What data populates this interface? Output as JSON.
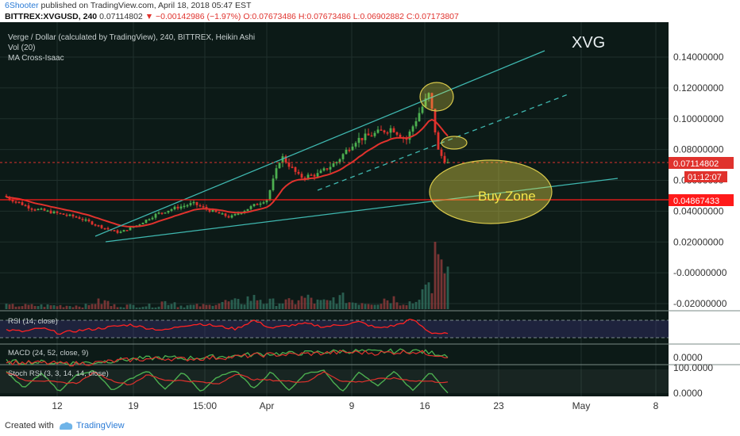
{
  "header": {
    "publisher": "6Shooter",
    "published_text": "published on TradingView.com, April 18, 2018 05:47 EST",
    "symbol": "BITTREX:XVGUSD",
    "interval": "240",
    "last_price": "0.07114802",
    "change": "▼ −0.00142986 (−1.97%)",
    "ohlc": "O:0.07673486 H:0.07673486 L:0.06902882 C:0.07173807"
  },
  "chart_data": {
    "type": "candlestick",
    "title": "Verge / Dollar (calculated by TradingView), 240, BITTREX, Heikin Ashi",
    "indicators": [
      "Vol (20)",
      "MA Cross-Isaac"
    ],
    "symbol_watermark": "XVG",
    "annotation": "Buy Zone",
    "price_axis_ticks": [
      "0.14000000",
      "0.12000000",
      "0.10000000",
      "0.08000000",
      "0.06000000",
      "0.04000000",
      "0.02000000",
      "-0.00000000",
      "-0.02000000"
    ],
    "ylim": [
      -0.026,
      0.152
    ],
    "x_ticks": [
      "12",
      "19",
      "15:00",
      "Apr",
      "9",
      "16",
      "23",
      "May",
      "8"
    ],
    "last_price_label": "0.07114802",
    "countdown_label": "01:12:07",
    "support_line_label": "0.04867433",
    "support_level": 0.04867433,
    "colors": {
      "up": "#4caf50",
      "down": "#e0322d",
      "ma": "#e0322d",
      "trend": "#3fb8b0",
      "zone": "#f5e64a",
      "support": "#ff1a1a"
    },
    "price_path": [
      {
        "t": 0,
        "p": 0.05
      },
      {
        "t": 12,
        "p": 0.042
      },
      {
        "t": 22,
        "p": 0.039
      },
      {
        "t": 32,
        "p": 0.036
      },
      {
        "t": 42,
        "p": 0.03
      },
      {
        "t": 50,
        "p": 0.026
      },
      {
        "t": 58,
        "p": 0.031
      },
      {
        "t": 66,
        "p": 0.038
      },
      {
        "t": 74,
        "p": 0.042
      },
      {
        "t": 82,
        "p": 0.045
      },
      {
        "t": 90,
        "p": 0.04
      },
      {
        "t": 98,
        "p": 0.036
      },
      {
        "t": 106,
        "p": 0.042
      },
      {
        "t": 114,
        "p": 0.048
      },
      {
        "t": 120,
        "p": 0.076
      },
      {
        "t": 128,
        "p": 0.062
      },
      {
        "t": 136,
        "p": 0.064
      },
      {
        "t": 144,
        "p": 0.072
      },
      {
        "t": 152,
        "p": 0.086
      },
      {
        "t": 160,
        "p": 0.09
      },
      {
        "t": 168,
        "p": 0.094
      },
      {
        "t": 174,
        "p": 0.086
      },
      {
        "t": 180,
        "p": 0.105
      },
      {
        "t": 184,
        "p": 0.116
      },
      {
        "t": 188,
        "p": 0.078
      },
      {
        "t": 192,
        "p": 0.0711
      }
    ],
    "rsi": {
      "label": "RSI (14, close)",
      "upper": 70,
      "lower": 30,
      "values": [
        48,
        44,
        52,
        40,
        46,
        50,
        55,
        60,
        52,
        47,
        58,
        62,
        56,
        50,
        70,
        52,
        58,
        62,
        55,
        60,
        66,
        52,
        58,
        72,
        42,
        38
      ]
    },
    "macd": {
      "label": "MACD (24, 52, close, 9)",
      "axis_ticks": [
        "0.0000"
      ],
      "values": [
        -0.4,
        -0.5,
        -0.5,
        -0.6,
        -0.6,
        -0.5,
        -0.3,
        -0.1,
        0.0,
        0.1,
        0.0,
        0.1,
        0.2,
        0.3,
        0.5,
        0.6,
        0.6,
        0.7,
        0.8,
        0.9,
        0.9,
        0.8,
        0.9,
        1.0,
        0.7,
        0.4
      ]
    },
    "stoch_rsi": {
      "label": "Stoch RSI (3, 3, 14, 14, close)",
      "axis_ticks": [
        "100.0000",
        "0.0000"
      ],
      "values": [
        90,
        20,
        85,
        5,
        80,
        95,
        10,
        60,
        95,
        15,
        90,
        5,
        70,
        95,
        20,
        90,
        10,
        85,
        95,
        5,
        90,
        30,
        95,
        10,
        90,
        0
      ]
    },
    "volume": [
      1,
      1,
      1,
      1,
      1,
      2,
      1,
      1,
      1,
      2,
      1,
      1,
      2,
      2,
      3,
      2,
      2,
      3,
      2,
      3,
      2,
      2,
      3,
      2,
      5,
      3
    ]
  },
  "footer": {
    "created_with": "Created with",
    "tradingview": "TradingView"
  }
}
